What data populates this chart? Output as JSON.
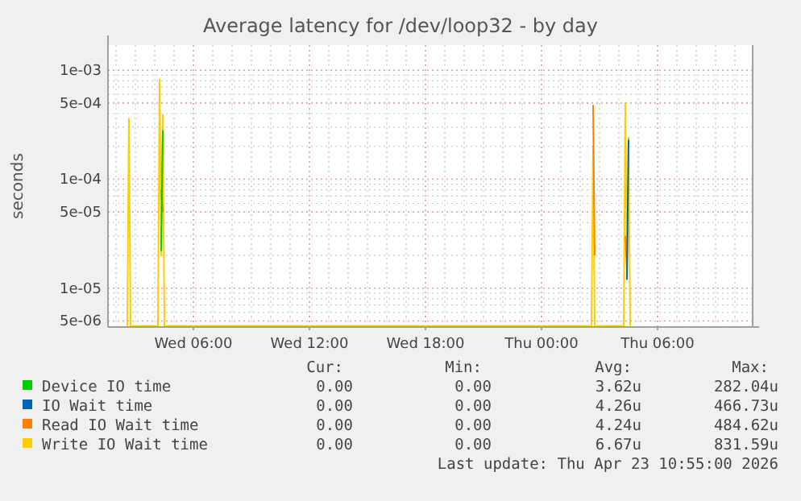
{
  "chart_data": {
    "type": "line",
    "title": "Average latency for /dev/loop32 - by day",
    "ylabel": "seconds",
    "log": "y",
    "grid": true,
    "legend": "bottom",
    "line_style": "solid",
    "xlim": [
      "2026-04-22T01:35",
      "2026-04-23T10:55"
    ],
    "xticks": [
      {
        "value": "2026-04-22T06:00",
        "label": "Wed 06:00"
      },
      {
        "value": "2026-04-22T12:00",
        "label": "Wed 12:00"
      },
      {
        "value": "2026-04-22T18:00",
        "label": "Wed 18:00"
      },
      {
        "value": "2026-04-23T00:00",
        "label": "Thu 00:00"
      },
      {
        "value": "2026-04-23T06:00",
        "label": "Thu 06:00"
      }
    ],
    "ylim": [
      4.4e-06,
      0.0017
    ],
    "yticks": [
      {
        "value": 5e-06,
        "label": "5e-06"
      },
      {
        "value": 1e-05,
        "label": "1e-05"
      },
      {
        "value": 5e-05,
        "label": "5e-05"
      },
      {
        "value": 0.0001,
        "label": "1e-04"
      },
      {
        "value": 0.0005,
        "label": "5e-04"
      },
      {
        "value": 0.001,
        "label": "1e-03"
      }
    ],
    "series": [
      {
        "name": "Device IO time",
        "color": "#00cc00",
        "x": [
          "2026-04-22T04:20",
          "2026-04-22T04:25"
        ],
        "values": [
          2.2e-05,
          0.00028
        ]
      },
      {
        "name": "IO Wait time",
        "color": "#0066b3",
        "x": [
          "2026-04-23T04:25",
          "2026-04-23T04:30"
        ],
        "values": [
          1.2e-05,
          0.00023
        ]
      },
      {
        "name": "Read IO Wait time",
        "color": "#ff8000",
        "x": [
          "2026-04-22T04:20",
          "2026-04-22T04:25",
          "2026-04-22T04:30",
          "2026-04-23T02:40",
          "2026-04-23T02:45",
          "2026-04-23T02:50",
          "2026-04-23T04:20",
          "2026-04-23T04:25"
        ],
        "values": [
          8e-05,
          5e-05,
          null,
          0.00048,
          2e-05,
          null,
          3e-05,
          1.5e-05
        ]
      },
      {
        "name": "Write IO Wait time",
        "color": "#ffcc00",
        "x": [
          "2026-04-22T02:35",
          "2026-04-22T02:40",
          "2026-04-22T02:45",
          "2026-04-22T04:10",
          "2026-04-22T04:15",
          "2026-04-22T04:20",
          "2026-04-22T04:25",
          "2026-04-22T04:30",
          "2026-04-23T02:35",
          "2026-04-23T02:40",
          "2026-04-23T02:45",
          "2026-04-23T04:15",
          "2026-04-23T04:20",
          "2026-04-23T04:25",
          "2026-04-23T04:30",
          "2026-04-23T04:35"
        ],
        "values": [
          4.5e-06,
          0.00036,
          4.5e-06,
          4.5e-06,
          0.00083,
          2e-05,
          0.00039,
          4.5e-06,
          4.5e-06,
          0.0002,
          4.5e-06,
          4.5e-06,
          0.0005,
          1.2e-05,
          0.00024,
          4.5e-06
        ]
      }
    ],
    "annotations": [
      "Cur:",
      "Min:",
      "Avg:",
      "Max:",
      "0.00",
      "0.00",
      "3.62u",
      "282.04u",
      "0.00",
      "0.00",
      "4.26u",
      "466.73u",
      "0.00",
      "0.00",
      "4.24u",
      "484.62u",
      "0.00",
      "0.00",
      "6.67u",
      "831.59u",
      "Last update: Thu Apr 23 10:55:00 2026"
    ]
  }
}
